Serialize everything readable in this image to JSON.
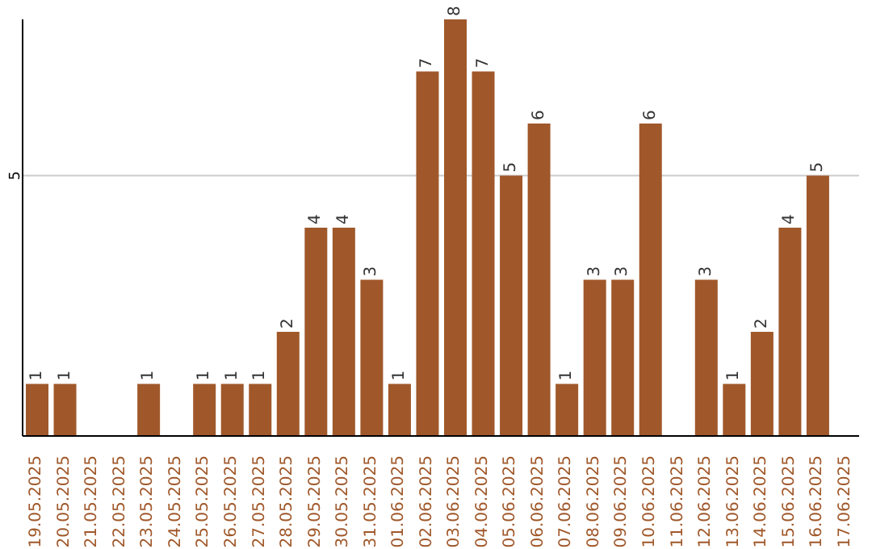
{
  "chart_data": {
    "type": "bar",
    "categories": [
      "19.05.2025",
      "20.05.2025",
      "21.05.2025",
      "22.05.2025",
      "23.05.2025",
      "24.05.2025",
      "25.05.2025",
      "26.05.2025",
      "27.05.2025",
      "28.05.2025",
      "29.05.2025",
      "30.05.2025",
      "31.05.2025",
      "01.06.2025",
      "02.06.2025",
      "03.06.2025",
      "04.06.2025",
      "05.06.2025",
      "06.06.2025",
      "07.06.2025",
      "08.06.2025",
      "09.06.2025",
      "10.06.2025",
      "11.06.2025",
      "12.06.2025",
      "13.06.2025",
      "14.06.2025",
      "15.06.2025",
      "16.06.2025",
      "17.06.2025"
    ],
    "values": [
      1,
      1,
      null,
      null,
      1,
      null,
      1,
      1,
      1,
      2,
      4,
      4,
      3,
      1,
      7,
      8,
      7,
      5,
      6,
      1,
      3,
      3,
      6,
      null,
      3,
      1,
      2,
      4,
      5,
      null
    ],
    "color": "#a0582a",
    "ylim": [
      0,
      8
    ],
    "yticks": [
      5
    ],
    "grid": "y",
    "data_labels": true
  }
}
